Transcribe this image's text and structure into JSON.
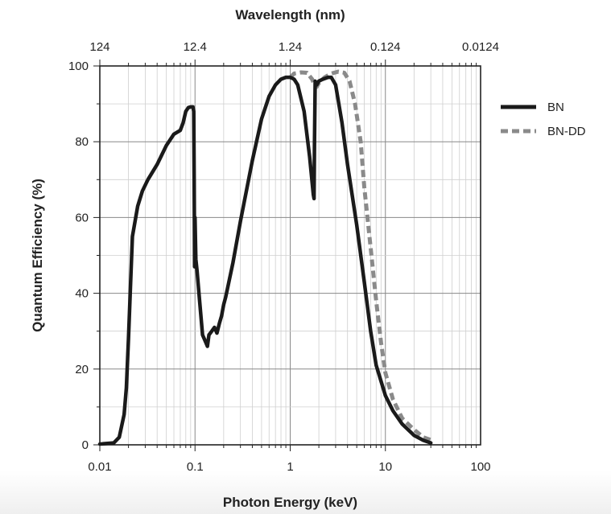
{
  "chart_data": {
    "type": "line",
    "xlabel": "Photon Energy (keV)",
    "ylabel": "Quantum Efficiency (%)",
    "x2label": "Wavelength (nm)",
    "xscale": "log",
    "xlim": [
      0.01,
      100
    ],
    "ylim": [
      0,
      100
    ],
    "x_ticks": [
      0.01,
      0.1,
      1,
      10,
      100
    ],
    "x_tick_labels": [
      "0.01",
      "0.1",
      "1",
      "10",
      "100"
    ],
    "x2_ticks": [
      0.01,
      0.1,
      1,
      10,
      100
    ],
    "x2_tick_labels": [
      "124",
      "12.4",
      "1.24",
      "0.124",
      "0.0124"
    ],
    "y_ticks": [
      0,
      20,
      40,
      60,
      80,
      100
    ],
    "y_tick_labels": [
      "0",
      "20",
      "40",
      "60",
      "80",
      "100"
    ],
    "grid": true,
    "legend_position": "right",
    "series": [
      {
        "name": "BN",
        "color": "#1a1a1a",
        "style": "solid",
        "points": [
          [
            0.01,
            0.2
          ],
          [
            0.014,
            0.5
          ],
          [
            0.016,
            2
          ],
          [
            0.018,
            8
          ],
          [
            0.019,
            15
          ],
          [
            0.02,
            28
          ],
          [
            0.021,
            42
          ],
          [
            0.022,
            55
          ],
          [
            0.025,
            63
          ],
          [
            0.028,
            67
          ],
          [
            0.032,
            70
          ],
          [
            0.04,
            74
          ],
          [
            0.05,
            79
          ],
          [
            0.06,
            82
          ],
          [
            0.07,
            83
          ],
          [
            0.075,
            85
          ],
          [
            0.08,
            88
          ],
          [
            0.085,
            89
          ],
          [
            0.09,
            89.2
          ],
          [
            0.095,
            89.2
          ],
          [
            0.097,
            88
          ],
          [
            0.098,
            70
          ],
          [
            0.099,
            47
          ],
          [
            0.1,
            60
          ],
          [
            0.102,
            49
          ],
          [
            0.105,
            46
          ],
          [
            0.11,
            40
          ],
          [
            0.12,
            29
          ],
          [
            0.13,
            27
          ],
          [
            0.135,
            26
          ],
          [
            0.14,
            29
          ],
          [
            0.15,
            30
          ],
          [
            0.16,
            31
          ],
          [
            0.17,
            29.5
          ],
          [
            0.18,
            32
          ],
          [
            0.19,
            34
          ],
          [
            0.2,
            37
          ],
          [
            0.21,
            39
          ],
          [
            0.25,
            48
          ],
          [
            0.3,
            59
          ],
          [
            0.4,
            75
          ],
          [
            0.5,
            86
          ],
          [
            0.6,
            92
          ],
          [
            0.7,
            95
          ],
          [
            0.8,
            96.5
          ],
          [
            0.9,
            97
          ],
          [
            1.0,
            97
          ],
          [
            1.1,
            96.5
          ],
          [
            1.2,
            95
          ],
          [
            1.4,
            88
          ],
          [
            1.6,
            76
          ],
          [
            1.75,
            66
          ],
          [
            1.78,
            65
          ],
          [
            1.8,
            80
          ],
          [
            1.83,
            96
          ],
          [
            1.9,
            95
          ],
          [
            2.0,
            96
          ],
          [
            2.2,
            96.5
          ],
          [
            2.5,
            97
          ],
          [
            2.7,
            97
          ],
          [
            3.0,
            95
          ],
          [
            3.5,
            85
          ],
          [
            4,
            74
          ],
          [
            5,
            58
          ],
          [
            6,
            43
          ],
          [
            7,
            30
          ],
          [
            8,
            21
          ],
          [
            10,
            13
          ],
          [
            12,
            9
          ],
          [
            15,
            5.5
          ],
          [
            20,
            2.5
          ],
          [
            25,
            1.2
          ],
          [
            30,
            0.5
          ]
        ]
      },
      {
        "name": "BN-DD",
        "color": "#8a8a8a",
        "style": "dashed",
        "points": [
          [
            1.0,
            97
          ],
          [
            1.1,
            98
          ],
          [
            1.3,
            98.3
          ],
          [
            1.5,
            98.2
          ],
          [
            1.7,
            96.5
          ],
          [
            1.8,
            95
          ],
          [
            1.9,
            94.5
          ],
          [
            2.0,
            95.5
          ],
          [
            2.3,
            97
          ],
          [
            2.7,
            98
          ],
          [
            3.2,
            98.5
          ],
          [
            3.7,
            98.2
          ],
          [
            4.2,
            96
          ],
          [
            4.8,
            90
          ],
          [
            5.5,
            80
          ],
          [
            6,
            68
          ],
          [
            7,
            52
          ],
          [
            8,
            38
          ],
          [
            9,
            27
          ],
          [
            10,
            19
          ],
          [
            12,
            12
          ],
          [
            15,
            7
          ],
          [
            20,
            4
          ],
          [
            25,
            2
          ],
          [
            30,
            1.3
          ]
        ]
      }
    ]
  }
}
